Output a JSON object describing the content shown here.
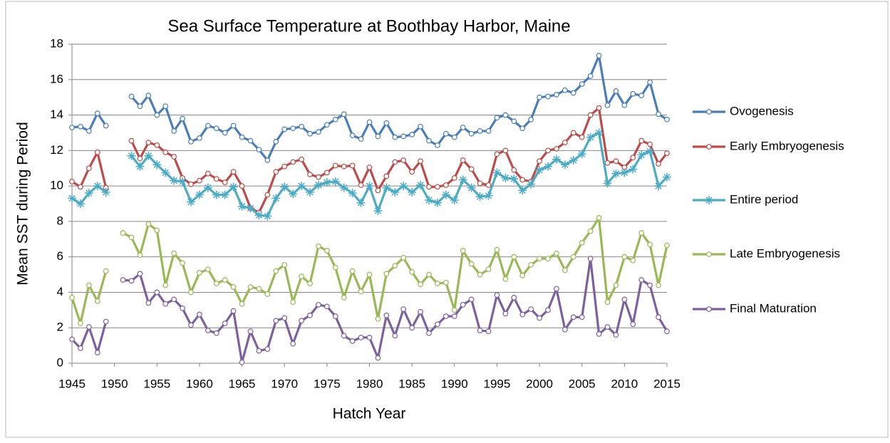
{
  "chart_data": {
    "type": "line",
    "title": "Sea Surface Temperature at Boothbay Harbor, Maine",
    "x_label": "Hatch Year",
    "y_label": "Mean SST during Period",
    "x": [
      1945,
      1946,
      1947,
      1948,
      1949,
      1950,
      1951,
      1952,
      1953,
      1954,
      1955,
      1956,
      1957,
      1958,
      1959,
      1960,
      1961,
      1962,
      1963,
      1964,
      1965,
      1966,
      1967,
      1968,
      1969,
      1970,
      1971,
      1972,
      1973,
      1974,
      1975,
      1976,
      1977,
      1978,
      1979,
      1980,
      1981,
      1982,
      1983,
      1984,
      1985,
      1986,
      1987,
      1988,
      1989,
      1990,
      1991,
      1992,
      1993,
      1994,
      1995,
      1996,
      1997,
      1998,
      1999,
      2000,
      2001,
      2002,
      2003,
      2004,
      2005,
      2006,
      2007,
      2008,
      2009,
      2010,
      2011,
      2012,
      2013,
      2014,
      2015
    ],
    "xlim": [
      1945,
      2015
    ],
    "xticks": [
      1945,
      1950,
      1955,
      1960,
      1965,
      1970,
      1975,
      1980,
      1985,
      1990,
      1995,
      2000,
      2005,
      2010,
      2015
    ],
    "ylim": [
      0,
      18
    ],
    "yticks": [
      0,
      2,
      4,
      6,
      8,
      10,
      12,
      14,
      16,
      18
    ],
    "grid": true,
    "legend": "right",
    "series": [
      {
        "name": "Ovogenesis",
        "color": "#4a7ebb",
        "marker": "circle",
        "values": [
          13.3,
          13.35,
          13.1,
          14.1,
          13.4,
          null,
          null,
          15.05,
          14.5,
          15.1,
          14.0,
          14.5,
          13.1,
          13.8,
          12.5,
          12.7,
          13.4,
          13.25,
          13.0,
          13.4,
          12.75,
          12.55,
          12.05,
          11.45,
          12.5,
          13.2,
          13.25,
          13.35,
          12.95,
          13.05,
          13.45,
          13.75,
          14.05,
          12.85,
          12.65,
          13.6,
          12.8,
          13.55,
          12.75,
          12.8,
          12.9,
          13.35,
          12.55,
          12.3,
          12.95,
          12.75,
          13.3,
          12.95,
          13.1,
          13.1,
          13.85,
          14.0,
          13.65,
          13.25,
          13.75,
          15.0,
          15.05,
          15.15,
          15.4,
          15.25,
          15.75,
          16.2,
          17.35,
          14.55,
          15.35,
          14.55,
          15.2,
          15.1,
          15.85,
          14.05,
          13.75
        ]
      },
      {
        "name": "Early Embryogenesis",
        "color": "#be4b48",
        "marker": "circle",
        "values": [
          10.25,
          9.95,
          11.0,
          11.9,
          9.9,
          null,
          null,
          12.55,
          11.55,
          12.45,
          12.3,
          11.9,
          11.65,
          10.45,
          10.1,
          10.3,
          10.7,
          10.4,
          10.2,
          10.8,
          10.0,
          8.75,
          8.5,
          9.5,
          10.8,
          11.1,
          11.35,
          11.5,
          10.65,
          10.5,
          10.75,
          11.15,
          11.1,
          11.15,
          10.05,
          11.05,
          9.75,
          10.55,
          11.35,
          11.45,
          10.8,
          11.4,
          9.95,
          9.95,
          10.05,
          10.45,
          11.45,
          10.95,
          10.15,
          10.05,
          11.8,
          12.0,
          10.9,
          10.35,
          10.25,
          11.4,
          12.0,
          12.1,
          12.45,
          13.0,
          12.75,
          14.0,
          14.4,
          11.3,
          11.4,
          11.05,
          11.6,
          12.55,
          12.35,
          11.25,
          11.85
        ]
      },
      {
        "name": "Entire period",
        "color": "#4bacc6",
        "marker": "star",
        "values": [
          9.3,
          9.0,
          9.6,
          10.0,
          9.65,
          null,
          null,
          11.7,
          11.1,
          11.7,
          11.2,
          10.75,
          10.3,
          10.25,
          9.1,
          9.5,
          9.9,
          9.5,
          9.5,
          9.95,
          8.85,
          8.75,
          8.35,
          8.3,
          9.3,
          9.95,
          9.55,
          10.0,
          9.65,
          10.05,
          10.2,
          10.25,
          9.9,
          9.6,
          9.05,
          10.0,
          8.6,
          9.9,
          9.65,
          10.0,
          9.65,
          10.05,
          9.2,
          9.05,
          9.5,
          9.2,
          10.35,
          9.9,
          9.4,
          9.45,
          10.75,
          10.45,
          10.4,
          9.75,
          10.1,
          10.9,
          11.1,
          11.5,
          11.2,
          11.45,
          11.8,
          12.75,
          13.0,
          10.15,
          10.7,
          10.75,
          10.95,
          11.75,
          11.95,
          10.0,
          10.5
        ]
      },
      {
        "name": "Late Embryogenesis",
        "color": "#98b954",
        "marker": "circle",
        "values": [
          3.7,
          2.25,
          4.4,
          3.5,
          5.2,
          null,
          7.35,
          7.1,
          6.1,
          7.85,
          7.5,
          4.4,
          6.2,
          5.65,
          4.0,
          5.1,
          5.3,
          4.5,
          4.7,
          4.3,
          3.35,
          4.3,
          4.2,
          3.9,
          5.2,
          5.55,
          3.45,
          4.9,
          4.5,
          6.6,
          6.35,
          5.4,
          3.7,
          5.2,
          4.05,
          5.0,
          2.5,
          5.05,
          5.5,
          5.95,
          5.15,
          4.45,
          5.0,
          4.5,
          4.55,
          3.0,
          6.35,
          5.6,
          5.0,
          5.3,
          6.4,
          4.75,
          6.0,
          4.95,
          5.55,
          5.9,
          5.9,
          6.2,
          5.25,
          6.0,
          6.8,
          7.45,
          8.2,
          3.45,
          4.4,
          6.0,
          5.8,
          7.35,
          6.7,
          4.4,
          6.65
        ]
      },
      {
        "name": "Final Maturation",
        "color": "#7d60a0",
        "marker": "circle",
        "values": [
          1.35,
          0.85,
          2.05,
          0.6,
          2.35,
          null,
          4.7,
          4.65,
          5.05,
          3.4,
          4.0,
          3.35,
          3.6,
          3.1,
          2.15,
          2.75,
          1.85,
          1.7,
          2.25,
          2.95,
          0.05,
          1.8,
          0.7,
          0.8,
          2.4,
          2.55,
          1.1,
          2.4,
          2.7,
          3.3,
          3.2,
          2.65,
          1.55,
          1.25,
          1.45,
          1.45,
          0.3,
          2.7,
          1.55,
          3.05,
          2.0,
          2.9,
          1.7,
          2.2,
          2.65,
          2.65,
          3.3,
          3.6,
          1.85,
          1.8,
          3.85,
          2.8,
          3.7,
          2.75,
          3.05,
          2.55,
          3.0,
          4.2,
          1.9,
          2.6,
          2.6,
          5.9,
          1.65,
          2.05,
          1.6,
          3.6,
          2.2,
          4.7,
          4.4,
          2.6,
          1.8
        ]
      }
    ]
  }
}
